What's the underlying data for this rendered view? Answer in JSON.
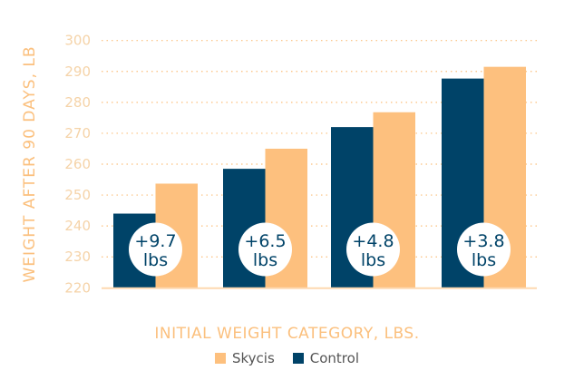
{
  "chart_data": {
    "type": "bar",
    "title": "",
    "xlabel": "INITIAL WEIGHT CATEGORY, LBS.",
    "ylabel": "WEIGHT AFTER 90 DAYS, LB",
    "ylim": [
      220,
      300
    ],
    "yticks": [
      220,
      230,
      240,
      250,
      260,
      270,
      280,
      290,
      300
    ],
    "grid": true,
    "legend_position": "bottom",
    "categories": [
      "",
      "",
      "",
      ""
    ],
    "series": [
      {
        "name": "Control",
        "color": "#004368",
        "values": [
          244,
          258.5,
          272,
          287.7
        ]
      },
      {
        "name": "Skycis",
        "color": "#fdc07e",
        "values": [
          253.7,
          265,
          276.8,
          291.5
        ]
      }
    ],
    "annotations": [
      {
        "line1": "+9.7",
        "line2": "lbs"
      },
      {
        "line1": "+6.5",
        "line2": "lbs"
      },
      {
        "line1": "+4.8",
        "line2": "lbs"
      },
      {
        "line1": "+3.8",
        "line2": "lbs"
      }
    ]
  },
  "legend": [
    {
      "label": "Skycis",
      "color": "#fdc07e"
    },
    {
      "label": "Control",
      "color": "#004368"
    }
  ]
}
